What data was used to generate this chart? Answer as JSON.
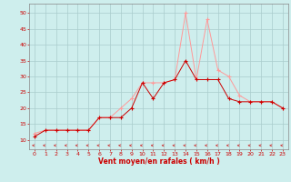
{
  "xlabel": "Vent moyen/en rafales ( km/h )",
  "ylabel": "",
  "background_color": "#ceeeed",
  "grid_color": "#aacccc",
  "line_color_mean": "#cc0000",
  "line_color_gust": "#ff9999",
  "hours": [
    0,
    1,
    2,
    3,
    4,
    5,
    6,
    7,
    8,
    9,
    10,
    11,
    12,
    13,
    14,
    15,
    16,
    17,
    18,
    19,
    20,
    21,
    22,
    23
  ],
  "wind_mean": [
    11,
    13,
    13,
    13,
    13,
    13,
    17,
    17,
    17,
    20,
    28,
    23,
    28,
    29,
    35,
    29,
    29,
    29,
    23,
    22,
    22,
    22,
    22,
    20
  ],
  "wind_gust": [
    12,
    13,
    13,
    13,
    13,
    13,
    17,
    17,
    20,
    23,
    28,
    28,
    28,
    29,
    50,
    29,
    48,
    32,
    30,
    24,
    22,
    22,
    22,
    20
  ],
  "ylim": [
    7,
    53
  ],
  "yticks": [
    10,
    15,
    20,
    25,
    30,
    35,
    40,
    45,
    50
  ],
  "xlim": [
    -0.5,
    23.5
  ],
  "xticks": [
    0,
    1,
    2,
    3,
    4,
    5,
    6,
    7,
    8,
    9,
    10,
    11,
    12,
    13,
    14,
    15,
    16,
    17,
    18,
    19,
    20,
    21,
    22,
    23
  ]
}
